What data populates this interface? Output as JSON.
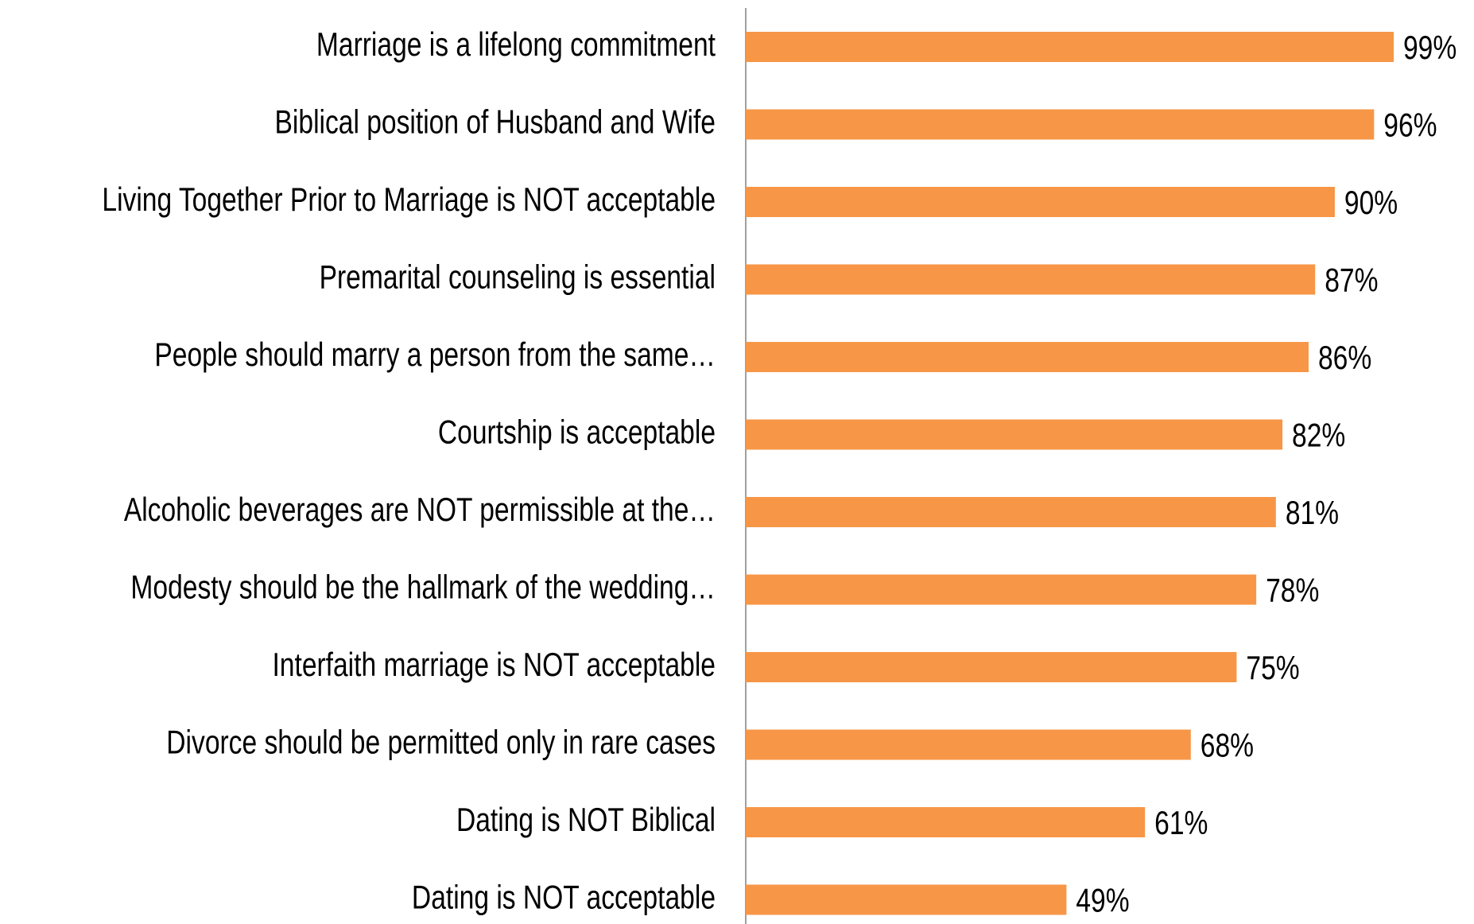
{
  "chart_data": {
    "type": "bar",
    "orientation": "horizontal",
    "categories": [
      "Marriage is a lifelong commitment",
      "Biblical position of Husband and Wife",
      "Living Together Prior to Marriage is NOT acceptable",
      "Premarital counseling is essential",
      "People should marry a person from the same…",
      "Courtship is acceptable",
      "Alcoholic beverages are NOT permissible at the…",
      "Modesty should be the hallmark of the wedding…",
      "Interfaith marriage is NOT acceptable",
      "Divorce should be permitted only in rare cases",
      "Dating is NOT Biblical",
      "Dating is NOT acceptable"
    ],
    "values": [
      99,
      96,
      90,
      87,
      86,
      82,
      81,
      78,
      75,
      68,
      61,
      49
    ],
    "value_labels": [
      "99%",
      "96%",
      "90%",
      "87%",
      "86%",
      "82%",
      "81%",
      "78%",
      "75%",
      "68%",
      "61%",
      "49%"
    ],
    "color": "#f79646"
  }
}
